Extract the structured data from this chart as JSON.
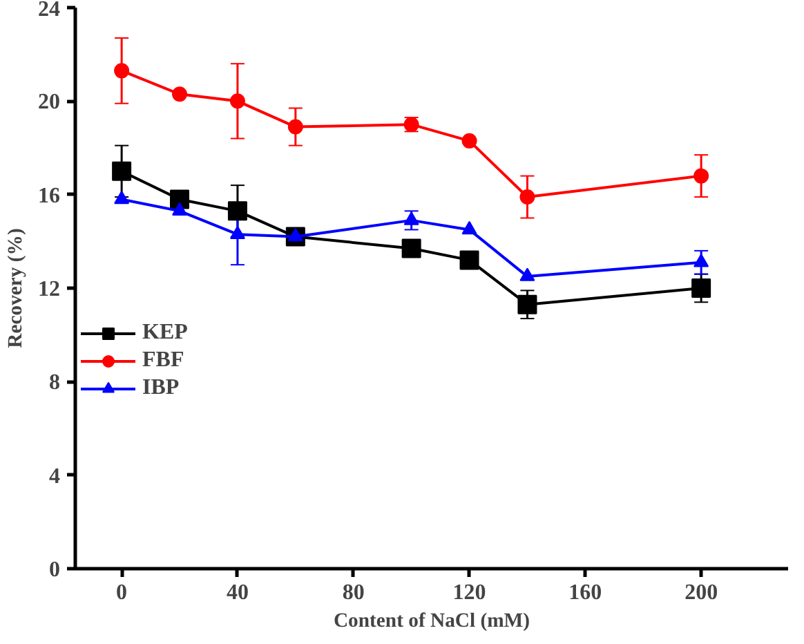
{
  "chart_data": {
    "type": "line",
    "xlabel": "Content of NaCl (mM)",
    "ylabel": "Recovery (%)",
    "x": [
      0,
      20,
      40,
      60,
      100,
      120,
      140,
      200
    ],
    "series": [
      {
        "name": "KEP",
        "color": "#000000",
        "marker": "square",
        "values": [
          17.0,
          15.8,
          15.3,
          14.2,
          13.7,
          13.2,
          11.3,
          12.0
        ],
        "errors": [
          1.1,
          null,
          1.1,
          null,
          null,
          null,
          0.6,
          0.6
        ]
      },
      {
        "name": "FBF",
        "color": "#ff0000",
        "marker": "circle",
        "values": [
          21.3,
          20.3,
          20.0,
          18.9,
          19.0,
          18.3,
          15.9,
          16.8
        ],
        "errors": [
          1.4,
          null,
          1.6,
          0.8,
          0.3,
          null,
          0.9,
          0.9
        ]
      },
      {
        "name": "IBP",
        "color": "#0000ff",
        "marker": "triangle",
        "values": [
          15.8,
          15.3,
          14.3,
          14.2,
          14.9,
          14.5,
          12.5,
          13.1
        ],
        "errors": [
          null,
          null,
          1.3,
          null,
          0.4,
          null,
          null,
          0.5
        ]
      }
    ],
    "xlim": [
      -16,
      230
    ],
    "xticks": [
      0,
      40,
      80,
      120,
      160,
      200
    ],
    "ylim": [
      0,
      24
    ],
    "yticks": [
      0,
      4,
      8,
      12,
      16,
      20,
      24
    ],
    "grid": false,
    "legend": "left"
  }
}
